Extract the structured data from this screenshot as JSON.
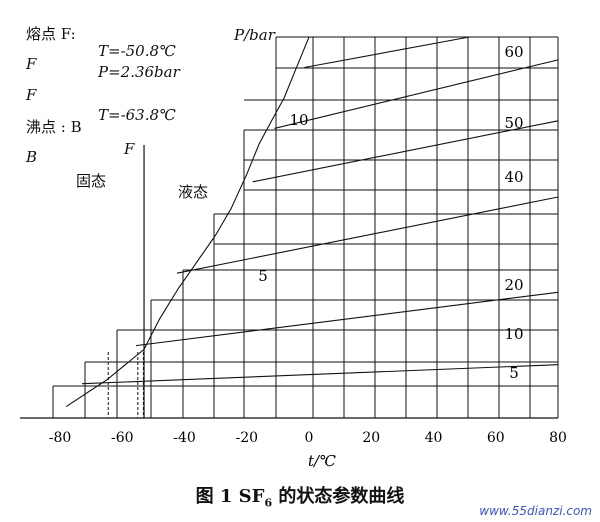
{
  "annotations": {
    "melting_point_label": "熔点 F:",
    "boiling_point_label": "沸点 : B",
    "letter_f1": "F",
    "letter_f2": "F",
    "letter_b": "B",
    "melting_T": "T=-50.8℃",
    "melting_P": "P=2.36bar",
    "boiling_T": "T=-63.8℃",
    "f_marker": "F",
    "solid_label": "固态",
    "liquid_label": "液态",
    "pressure_unit_label": "P/bar"
  },
  "caption": {
    "prefix": "图 1  SF",
    "subscript": "6",
    "suffix": " 的状态参数曲线"
  },
  "watermark": "www.55dianzi.com",
  "chart_data": {
    "type": "line",
    "xlabel": "t/℃",
    "xlim": [
      -80,
      80
    ],
    "xticks": [
      -80,
      -60,
      -40,
      -20,
      0,
      20,
      40,
      60,
      80
    ],
    "pressure_labels": [
      "60",
      "50",
      "40",
      "20",
      "10",
      "5",
      "10",
      "5"
    ],
    "series": [
      {
        "name": "60",
        "values": [
          [
            -1.5,
            92
          ],
          [
            51.5,
            100
          ]
        ]
      },
      {
        "name": "50",
        "values": [
          [
            -11.1,
            76
          ],
          [
            80,
            94
          ]
        ]
      },
      {
        "name": "40",
        "values": [
          [
            -18.1,
            62
          ],
          [
            80,
            78
          ]
        ]
      },
      {
        "name": "20",
        "values": [
          [
            -42.4,
            38
          ],
          [
            80,
            58
          ]
        ]
      },
      {
        "name": "10",
        "values": [
          [
            -55.6,
            19
          ],
          [
            80,
            33
          ]
        ]
      },
      {
        "name": "5",
        "values": [
          [
            -72.9,
            9
          ],
          [
            80,
            14
          ]
        ]
      }
    ],
    "saturation_curve": [
      [
        -78,
        3
      ],
      [
        -65,
        10
      ],
      [
        -56,
        16
      ],
      [
        -53,
        18
      ],
      [
        -48,
        26
      ],
      [
        -42,
        34
      ],
      [
        -36,
        41
      ],
      [
        -30,
        48
      ],
      [
        -25,
        55
      ],
      [
        -20,
        64
      ],
      [
        -16,
        72
      ],
      [
        -12,
        78
      ],
      [
        -8,
        84
      ],
      [
        -5,
        90
      ],
      [
        -2,
        96
      ],
      [
        0,
        100
      ]
    ],
    "dashed_guides": [
      -64.5,
      -55,
      -53.2
    ],
    "solid_liquid_boundary_x": -53
  }
}
